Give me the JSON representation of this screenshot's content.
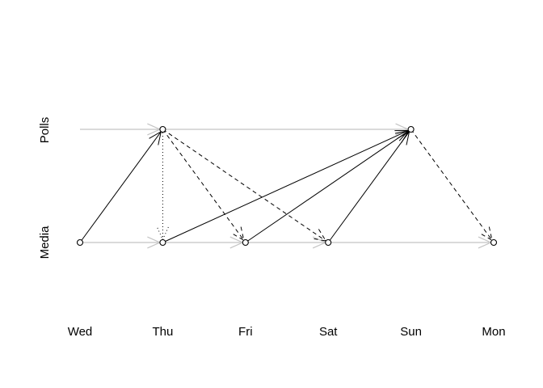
{
  "rows": {
    "top": "Polls",
    "bottom": "Media"
  },
  "days": [
    "Wed",
    "Thu",
    "Fri",
    "Sat",
    "Sun",
    "Mon"
  ],
  "nodes": [
    {
      "row": "top",
      "day": "Thu"
    },
    {
      "row": "top",
      "day": "Sun"
    },
    {
      "row": "bottom",
      "day": "Wed"
    },
    {
      "row": "bottom",
      "day": "Thu"
    },
    {
      "row": "bottom",
      "day": "Fri"
    },
    {
      "row": "bottom",
      "day": "Sat"
    },
    {
      "row": "bottom",
      "day": "Mon"
    }
  ],
  "edges": [
    {
      "from": [
        "top",
        "Wed"
      ],
      "to": [
        "top",
        "Thu"
      ],
      "style": "gray"
    },
    {
      "from": [
        "top",
        "Thu"
      ],
      "to": [
        "top",
        "Sun"
      ],
      "style": "gray"
    },
    {
      "from": [
        "bottom",
        "Wed"
      ],
      "to": [
        "bottom",
        "Thu"
      ],
      "style": "gray"
    },
    {
      "from": [
        "bottom",
        "Thu"
      ],
      "to": [
        "bottom",
        "Fri"
      ],
      "style": "gray"
    },
    {
      "from": [
        "bottom",
        "Fri"
      ],
      "to": [
        "bottom",
        "Sat"
      ],
      "style": "gray"
    },
    {
      "from": [
        "bottom",
        "Sat"
      ],
      "to": [
        "bottom",
        "Mon"
      ],
      "style": "gray"
    },
    {
      "from": [
        "bottom",
        "Wed"
      ],
      "to": [
        "top",
        "Thu"
      ],
      "style": "solid"
    },
    {
      "from": [
        "bottom",
        "Thu"
      ],
      "to": [
        "top",
        "Sun"
      ],
      "style": "solid"
    },
    {
      "from": [
        "bottom",
        "Fri"
      ],
      "to": [
        "top",
        "Sun"
      ],
      "style": "solid"
    },
    {
      "from": [
        "bottom",
        "Sat"
      ],
      "to": [
        "top",
        "Sun"
      ],
      "style": "solid"
    },
    {
      "from": [
        "top",
        "Thu"
      ],
      "to": [
        "bottom",
        "Thu"
      ],
      "style": "dotted"
    },
    {
      "from": [
        "top",
        "Thu"
      ],
      "to": [
        "bottom",
        "Fri"
      ],
      "style": "dashed"
    },
    {
      "from": [
        "top",
        "Thu"
      ],
      "to": [
        "bottom",
        "Sat"
      ],
      "style": "dashed"
    },
    {
      "from": [
        "top",
        "Sun"
      ],
      "to": [
        "bottom",
        "Mon"
      ],
      "style": "dashed"
    }
  ]
}
